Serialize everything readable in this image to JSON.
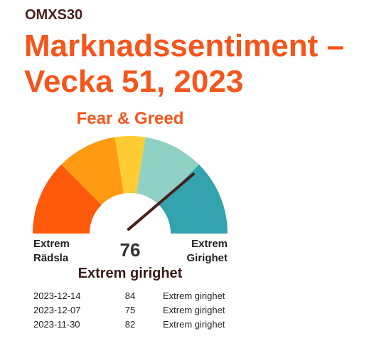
{
  "chart_data": {
    "type": "gauge",
    "kicker": "OMXS30",
    "title": "Marknadssentiment – Vecka 51, 2023",
    "subtitle": "Fear & Greed",
    "range": [
      0,
      100
    ],
    "bands": [
      {
        "from": 0,
        "to": 25,
        "color": "#ff5a0a"
      },
      {
        "from": 25,
        "to": 45,
        "color": "#ff9a12"
      },
      {
        "from": 45,
        "to": 55,
        "color": "#ffcc33"
      },
      {
        "from": 55,
        "to": 75,
        "color": "#8fd1c4"
      },
      {
        "from": 75,
        "to": 100,
        "color": "#33a3b0"
      }
    ],
    "value": 76,
    "value_label": "Extrem girighet",
    "min_label": "Extrem Rädsla",
    "max_label": "Extrem Girighet",
    "needle_color": "#4a1f1f",
    "history": {
      "dates": [
        "2023-12-14",
        "2023-12-07",
        "2023-11-30"
      ],
      "values": [
        84,
        75,
        82
      ],
      "labels": [
        "Extrem girighet",
        "Extrem girighet",
        "Extrem girighet"
      ]
    }
  }
}
